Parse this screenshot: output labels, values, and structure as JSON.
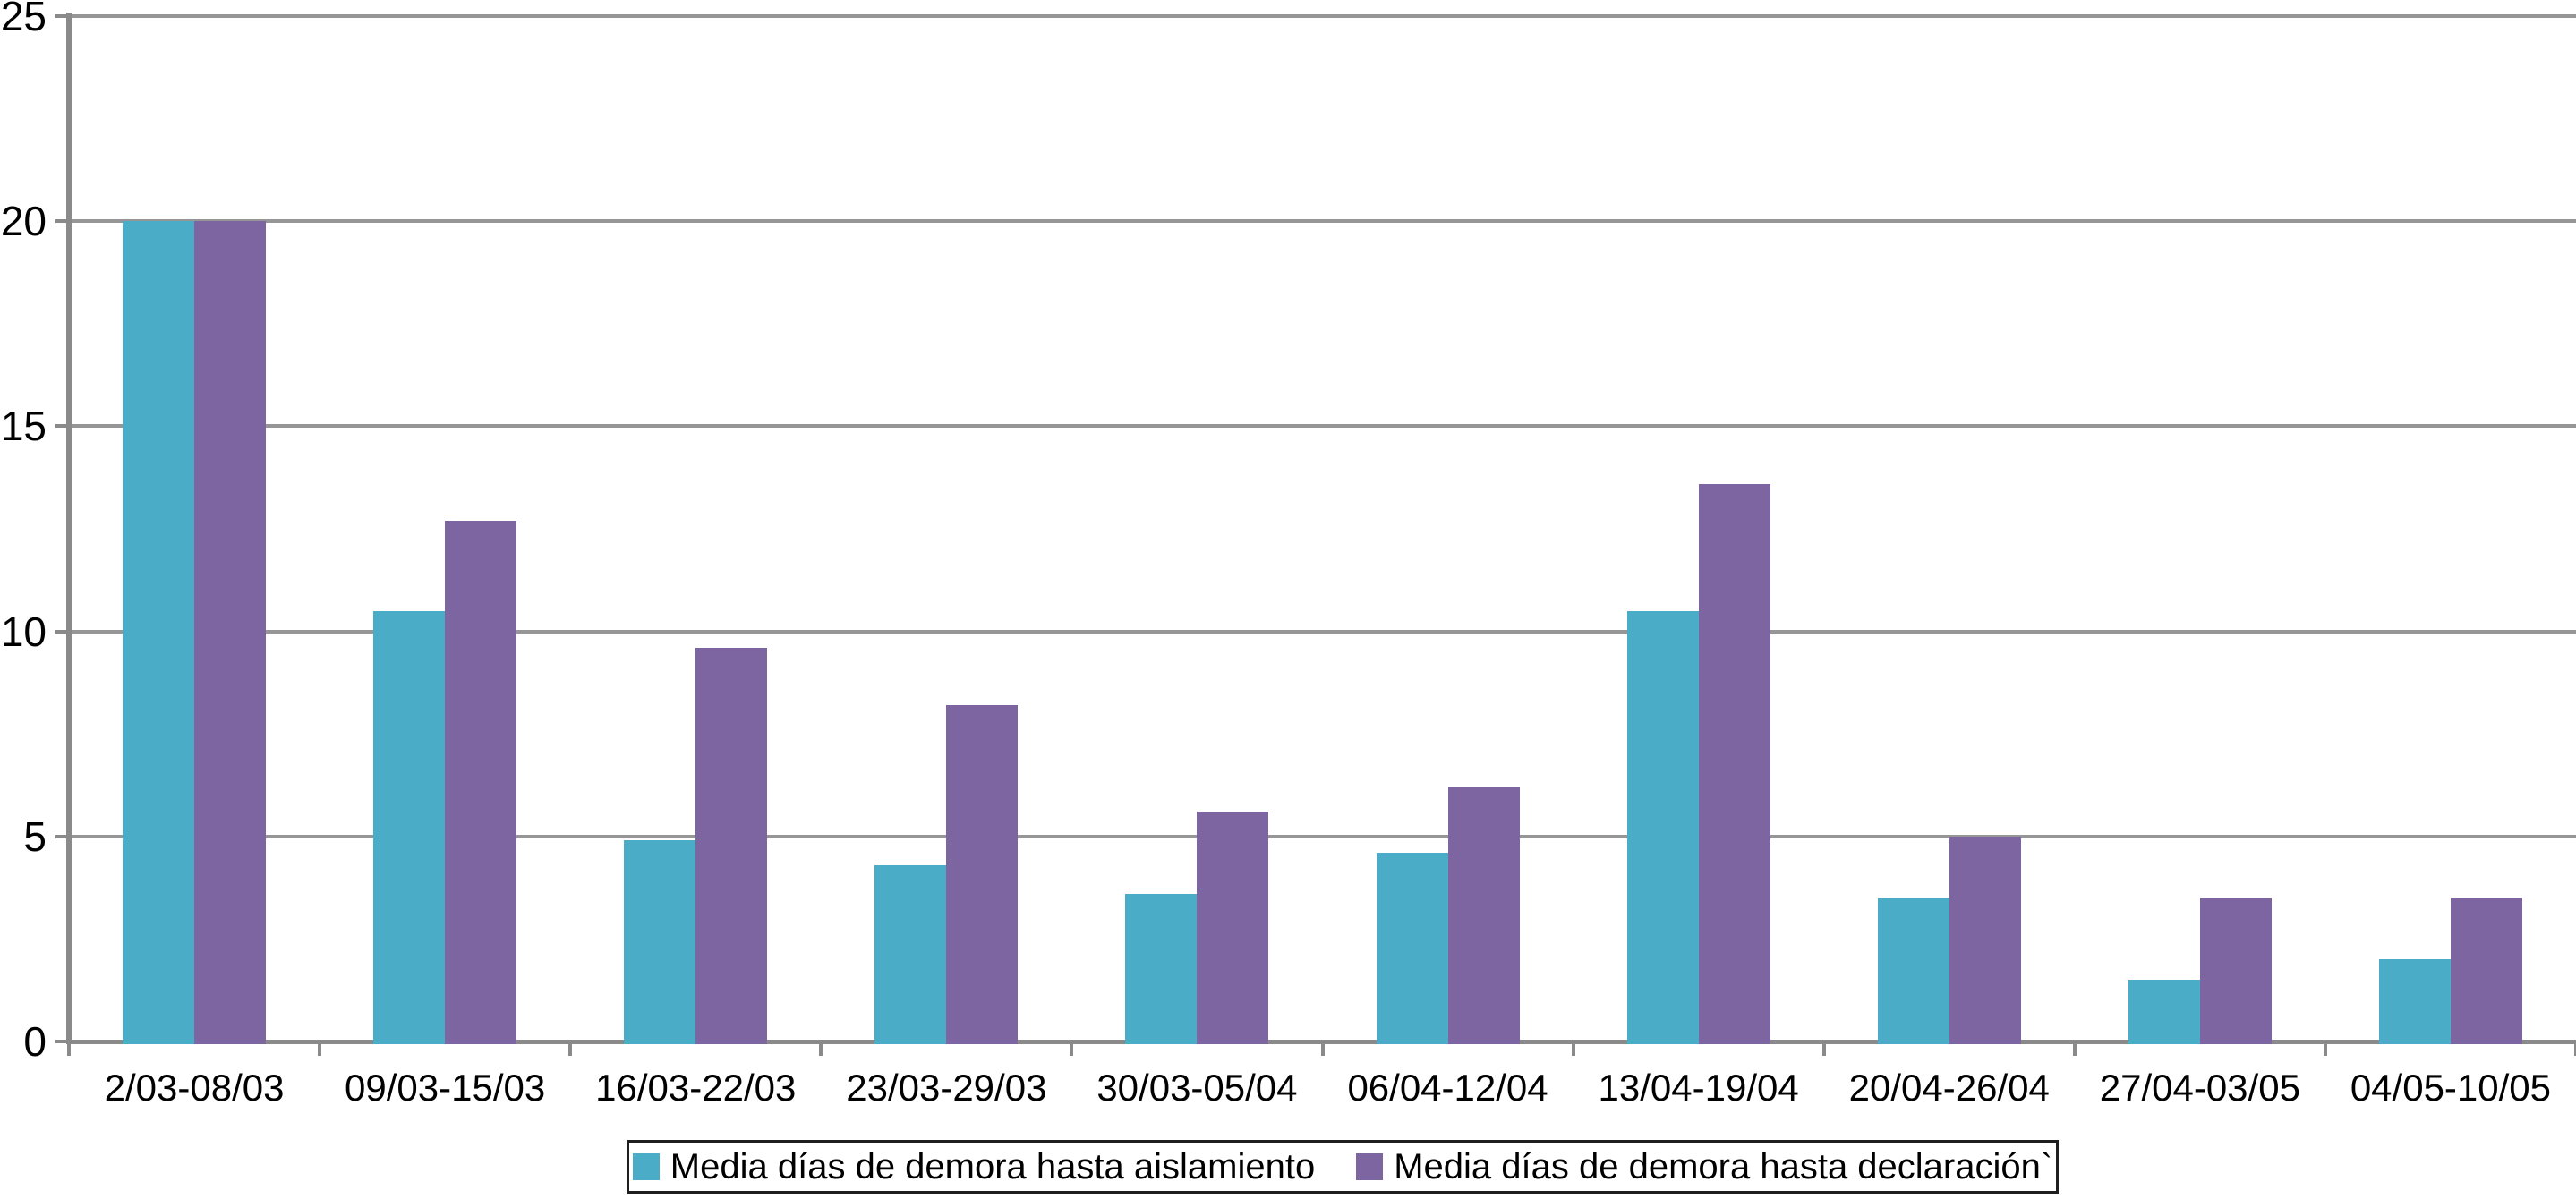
{
  "chart_data": {
    "type": "bar",
    "title": "",
    "xlabel": "",
    "ylabel": "",
    "categories": [
      "2/03-08/03",
      "09/03-15/03",
      "16/03-22/03",
      "23/03-29/03",
      "30/03-05/04",
      "06/04-12/04",
      "13/04-19/04",
      "20/04-26/04",
      "27/04-03/05",
      "04/05-10/05"
    ],
    "series": [
      {
        "name": "Media días de demora hasta aislamiento",
        "color": "#4AACC6",
        "values": [
          20,
          10.5,
          4.9,
          4.3,
          3.6,
          4.6,
          10.5,
          3.5,
          1.5,
          2
        ]
      },
      {
        "name": "Media días de demora hasta declaración`",
        "color": "#7D65A2",
        "values": [
          20,
          12.7,
          9.6,
          8.2,
          5.6,
          6.2,
          13.6,
          5,
          3.5,
          3.5
        ]
      }
    ],
    "ylim": [
      0,
      25
    ],
    "yticks": [
      0,
      5,
      10,
      15,
      20,
      25
    ],
    "grid": true,
    "legend_position": "bottom",
    "colors": {
      "gridline": "#969696",
      "axis": "#8A8A8A",
      "text": "#000000",
      "legend_border": "#1F1F1F"
    }
  }
}
